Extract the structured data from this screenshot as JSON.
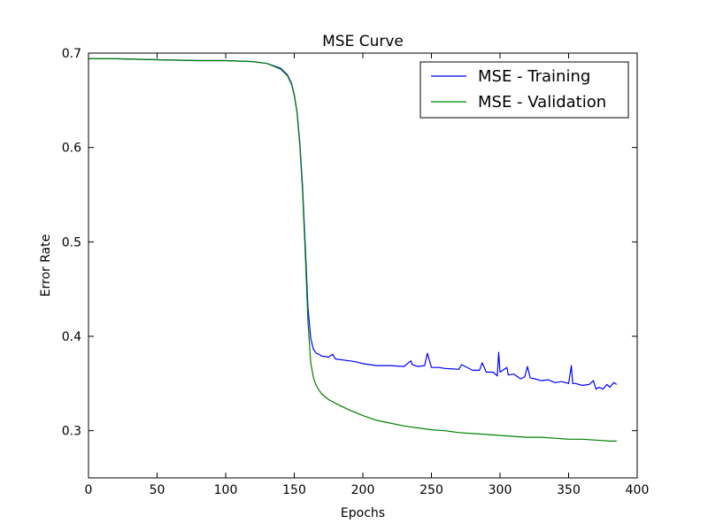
{
  "chart_data": {
    "type": "line",
    "title": "MSE Curve",
    "xlabel": "Epochs",
    "ylabel": "Error Rate",
    "xlim": [
      0,
      400
    ],
    "ylim": [
      0.25,
      0.7
    ],
    "xticks": [
      0,
      50,
      100,
      150,
      200,
      250,
      300,
      350,
      400
    ],
    "yticks": [
      0.3,
      0.4,
      0.5,
      0.6,
      0.7
    ],
    "xtick_labels": [
      "0",
      "50",
      "100",
      "150",
      "200",
      "250",
      "300",
      "350",
      "400"
    ],
    "ytick_labels": [
      "0.3",
      "0.4",
      "0.5",
      "0.6",
      "0.7"
    ],
    "grid": false,
    "legend_position": "top-right",
    "series": [
      {
        "name": "MSE - Training",
        "color": "#0000ff",
        "x": [
          0,
          20,
          50,
          80,
          100,
          120,
          130,
          140,
          145,
          148,
          150,
          152,
          154,
          156,
          158,
          160,
          162,
          164,
          166,
          168,
          170,
          175,
          178,
          180,
          185,
          190,
          195,
          200,
          210,
          220,
          230,
          235,
          236,
          240,
          245,
          247,
          250,
          255,
          260,
          270,
          272,
          280,
          285,
          287,
          290,
          295,
          298,
          299,
          300,
          305,
          306,
          310,
          315,
          318,
          320,
          322,
          325,
          330,
          335,
          340,
          345,
          350,
          352,
          353,
          355,
          360,
          365,
          368,
          370,
          372,
          375,
          378,
          380,
          383,
          385
        ],
        "y": [
          0.694,
          0.694,
          0.693,
          0.692,
          0.692,
          0.691,
          0.689,
          0.684,
          0.677,
          0.668,
          0.656,
          0.638,
          0.606,
          0.56,
          0.497,
          0.43,
          0.398,
          0.386,
          0.382,
          0.381,
          0.379,
          0.378,
          0.381,
          0.376,
          0.375,
          0.374,
          0.373,
          0.371,
          0.369,
          0.369,
          0.368,
          0.374,
          0.37,
          0.368,
          0.369,
          0.382,
          0.367,
          0.367,
          0.366,
          0.365,
          0.37,
          0.364,
          0.364,
          0.372,
          0.362,
          0.362,
          0.358,
          0.383,
          0.362,
          0.367,
          0.359,
          0.36,
          0.355,
          0.357,
          0.368,
          0.356,
          0.355,
          0.353,
          0.354,
          0.351,
          0.352,
          0.35,
          0.369,
          0.35,
          0.35,
          0.348,
          0.349,
          0.353,
          0.344,
          0.346,
          0.344,
          0.349,
          0.346,
          0.351,
          0.349
        ]
      },
      {
        "name": "MSE - Validation",
        "color": "#008000",
        "x": [
          0,
          20,
          50,
          80,
          100,
          120,
          130,
          140,
          145,
          148,
          150,
          152,
          154,
          156,
          158,
          160,
          162,
          164,
          166,
          168,
          170,
          175,
          180,
          190,
          200,
          210,
          220,
          230,
          240,
          250,
          260,
          270,
          280,
          290,
          300,
          310,
          320,
          330,
          340,
          350,
          360,
          370,
          380,
          385
        ],
        "y": [
          0.694,
          0.694,
          0.693,
          0.692,
          0.692,
          0.691,
          0.689,
          0.683,
          0.676,
          0.667,
          0.655,
          0.637,
          0.603,
          0.555,
          0.488,
          0.415,
          0.372,
          0.356,
          0.348,
          0.343,
          0.339,
          0.333,
          0.329,
          0.322,
          0.316,
          0.311,
          0.308,
          0.305,
          0.303,
          0.301,
          0.3,
          0.298,
          0.297,
          0.296,
          0.295,
          0.294,
          0.293,
          0.293,
          0.292,
          0.291,
          0.291,
          0.29,
          0.289,
          0.289
        ]
      }
    ]
  }
}
